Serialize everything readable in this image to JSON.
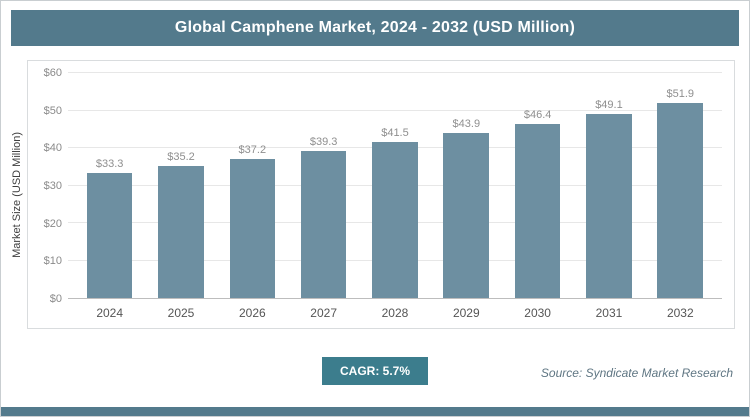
{
  "header": {
    "title": "Global Camphene Market, 2024 - 2032 (USD Million)"
  },
  "chart_data": {
    "type": "bar",
    "title": "Global Camphene Market, 2024 - 2032 (USD Million)",
    "categories": [
      "2024",
      "2025",
      "2026",
      "2027",
      "2028",
      "2029",
      "2030",
      "2031",
      "2032"
    ],
    "values": [
      33.3,
      35.2,
      37.2,
      39.3,
      41.5,
      43.9,
      46.4,
      49.1,
      51.9
    ],
    "value_prefix": "$",
    "xlabel": "",
    "ylabel": "Market Size (USD Million)",
    "ylim": [
      0,
      60
    ],
    "yticks": [
      0,
      10,
      20,
      30,
      40,
      50,
      60
    ],
    "ytick_prefix": "$",
    "grid": true,
    "legend": "none",
    "bar_color": "#6d8fa1"
  },
  "footer": {
    "cagr_label": "CAGR: 5.7%",
    "source": "Source: Syndicate Market Research"
  },
  "colors": {
    "title_bg": "#537a8c",
    "badge_bg": "#3c7d8d",
    "accent_strip": "#537a8c"
  }
}
